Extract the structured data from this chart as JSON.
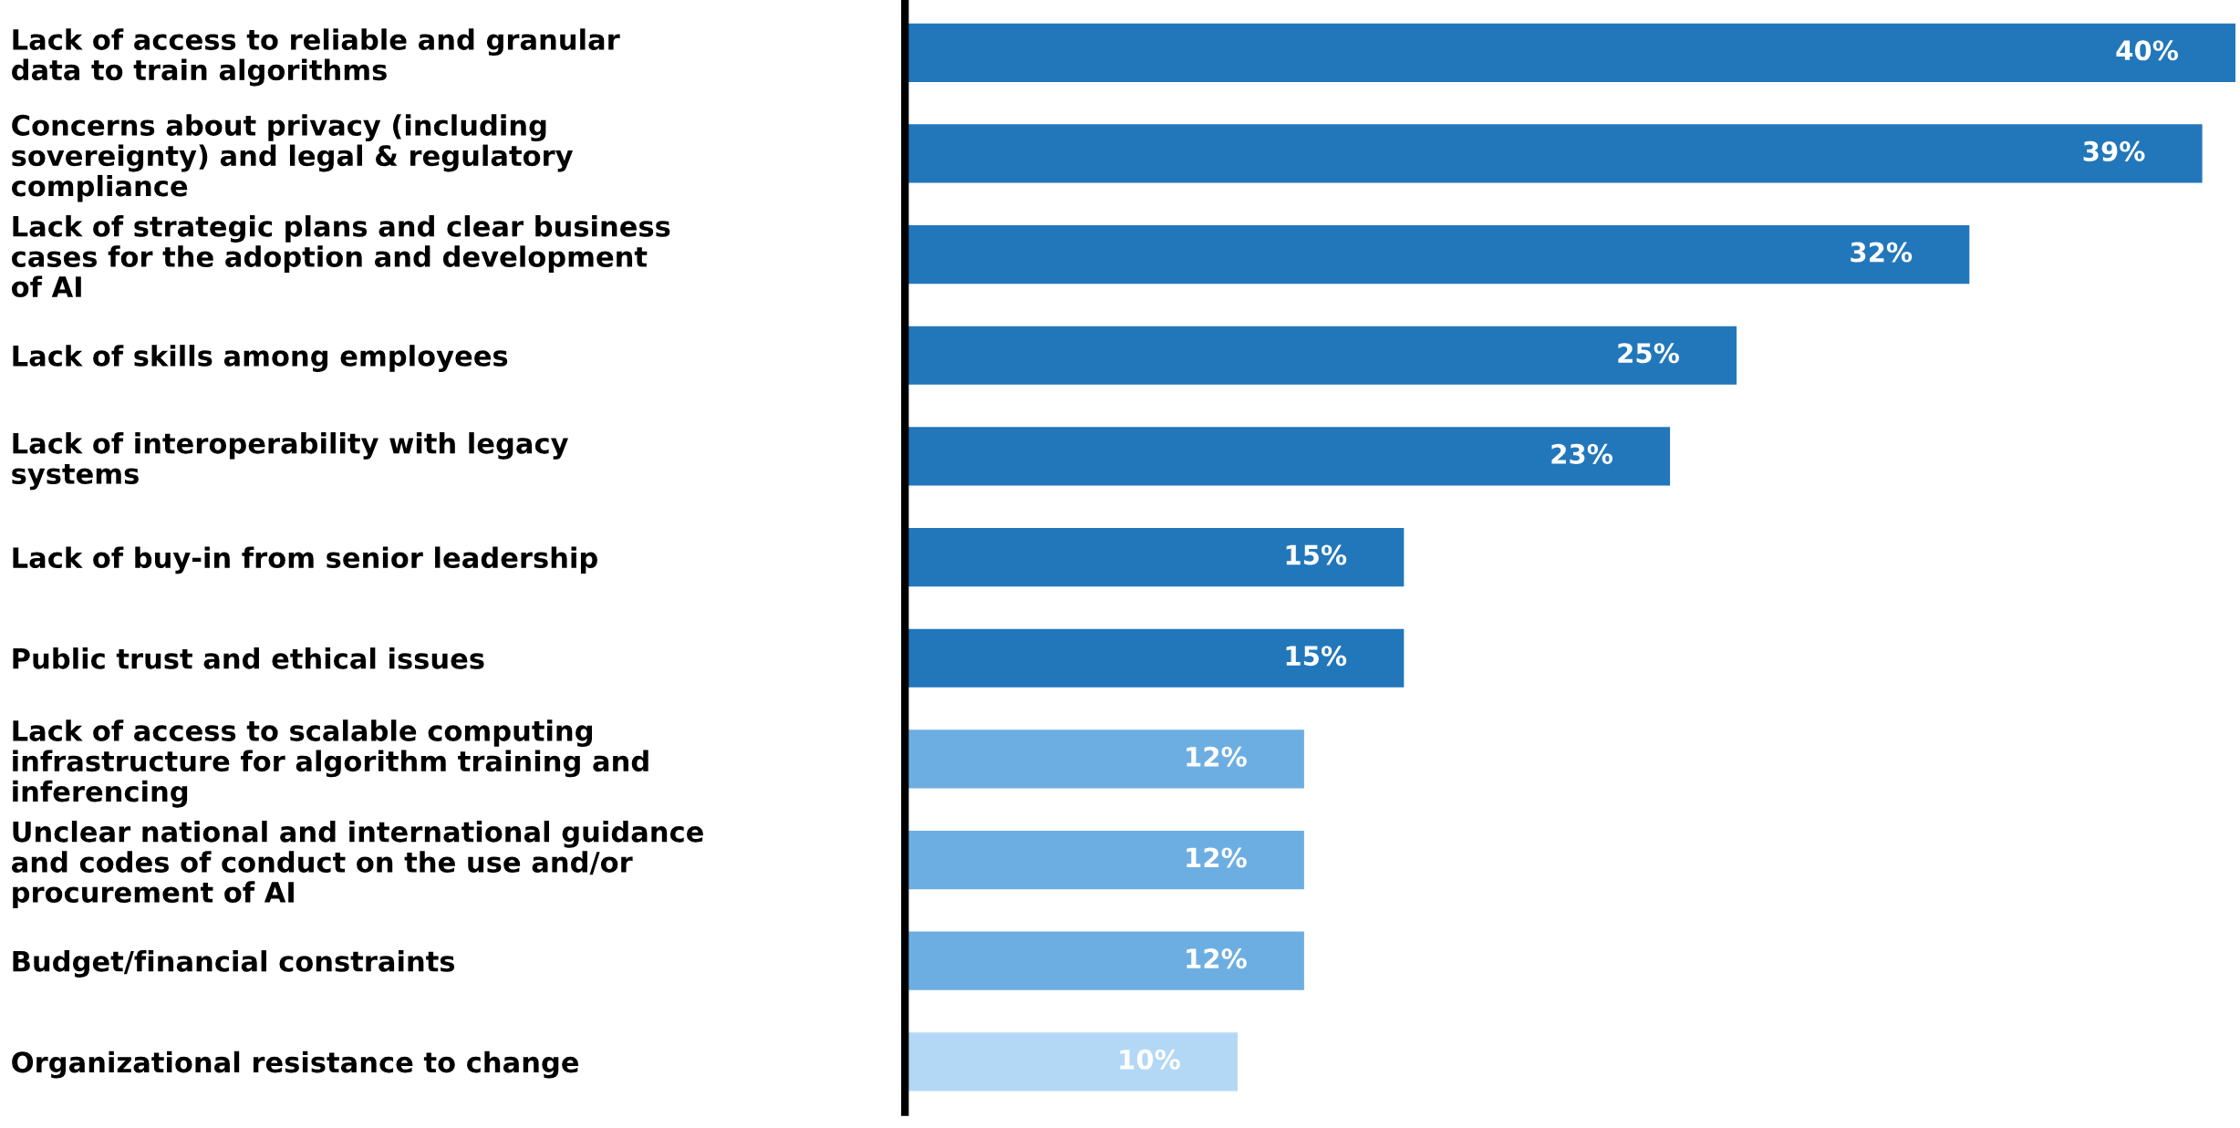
{
  "chart_data": {
    "type": "bar",
    "orientation": "horizontal",
    "categories": [
      "Lack of access to reliable and granular\ndata to train algorithms",
      "Concerns about privacy (including\nsovereignty) and legal & regulatory\ncompliance",
      "Lack of strategic plans and clear business\ncases for the adoption and development\nof AI",
      "Lack of skills among employees",
      "Lack of interoperability with legacy\nsystems",
      "Lack of buy-in from senior leadership",
      "Public trust and ethical issues",
      "Lack of access to scalable computing\ninfrastructure for algorithm training and\ninferencing",
      "Unclear national and international guidance\nand codes of conduct on the use and/or\nprocurement of AI",
      "Budget/financial constraints",
      "Organizational resistance to change"
    ],
    "values": [
      40,
      39,
      32,
      25,
      23,
      15,
      15,
      12,
      12,
      12,
      10
    ],
    "value_labels": [
      "40%",
      "39%",
      "32%",
      "25%",
      "23%",
      "15%",
      "15%",
      "12%",
      "12%",
      "12%",
      "10%"
    ],
    "colors": [
      "#2277bb",
      "#2277bb",
      "#2277bb",
      "#2277bb",
      "#2277bb",
      "#2277bb",
      "#2277bb",
      "#6daee2",
      "#6daee2",
      "#6daee2",
      "#b3d8f5"
    ],
    "xlim": [
      0,
      40
    ],
    "grid": false,
    "legend": false
  }
}
